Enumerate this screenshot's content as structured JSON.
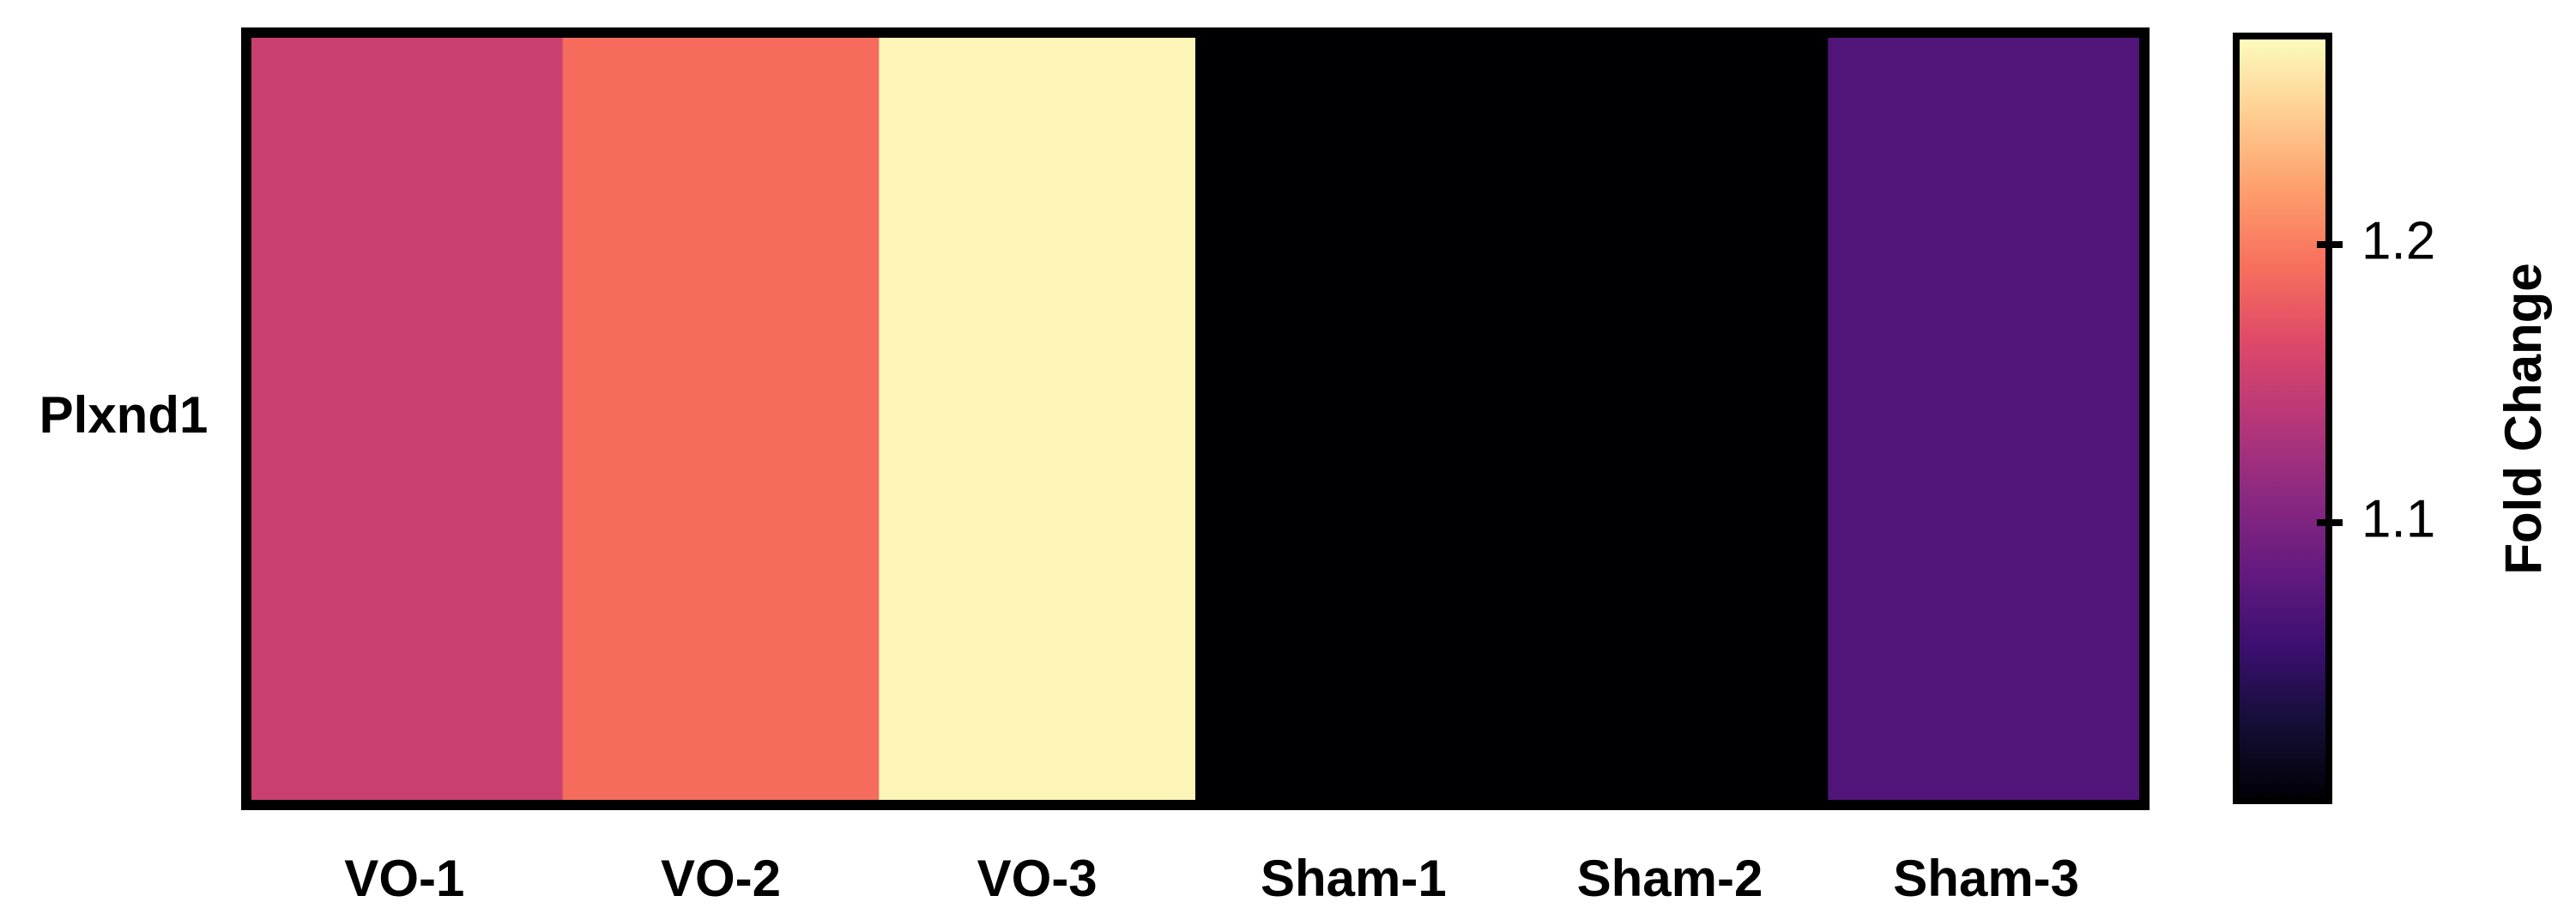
{
  "chart_data": {
    "type": "heatmap",
    "rows": [
      "Plxnd1"
    ],
    "categories": [
      "VO-1",
      "VO-2",
      "VO-3",
      "Sham-1",
      "Sham-2",
      "Sham-3"
    ],
    "values": [
      [
        1.15,
        1.19,
        1.27,
        1.0,
        1.0,
        1.07
      ]
    ],
    "colormap": "magma",
    "zlim": [
      1.0,
      1.275
    ],
    "zticks": [
      1.1,
      1.2
    ],
    "colorbar_label": "Fold Change"
  }
}
